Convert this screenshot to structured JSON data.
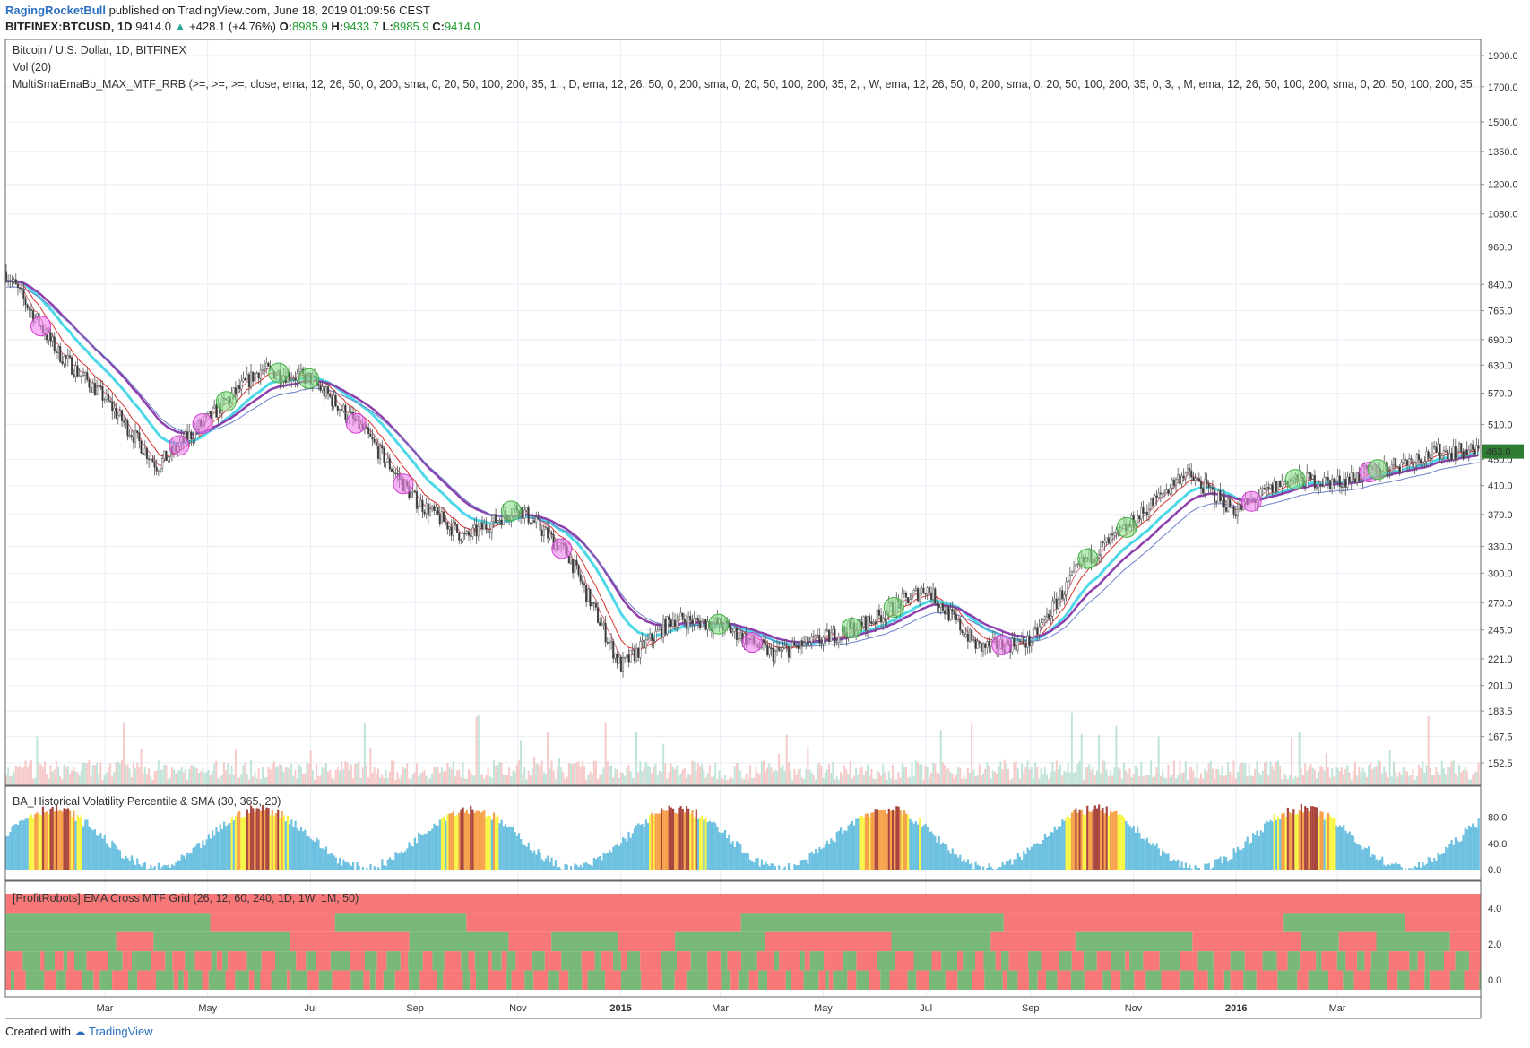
{
  "header": {
    "author": "RagingRocketBull",
    "published": "published on TradingView.com, June 18, 2019 01:09:56 CEST",
    "symbol": "BITFINEX:BTCUSD, 1D",
    "last": "9414.0",
    "change": "+428.1 (+4.76%)",
    "o_label": "O:",
    "o": "8985.9",
    "h_label": "H:",
    "h": "9433.7",
    "l_label": "L:",
    "l": "8985.9",
    "c_label": "C:",
    "c": "9414.0"
  },
  "legends": {
    "main_title": "Bitcoin / U.S. Dollar, 1D, BITFINEX",
    "volume": "Vol (20)",
    "indicator": "MultiSmaEmaBb_MAX_MTF_RRB (>=, >=, >=, close, ema, 12, 26, 50, 0, 200, sma, 0, 20, 50, 100, 200, 35, 1, , D, ema, 12, 26, 50, 0, 200, sma, 0, 20, 50, 100, 200, 35, 2, , W, ema, 12, 26, 50, 0, 200, sma, 0, 20, 50, 100, 200, 35, 0, 3, , M, ema, 12, 26, 50, 100, 200, sma, 0, 20, 50, 100, 200, 35",
    "volatility": "BA_Historical Volatility Percentile & SMA (30, 365, 20)",
    "ema_grid": "[ProfitRobots] EMA Cross MTF Grid (26, 12, 60, 240, 1D, 1W, 1M, 50)"
  },
  "colors": {
    "up": "#26a69a",
    "down": "#ef5350",
    "candle": "#555555",
    "cyan": "#4dd8e8",
    "purple": "#8e3fae",
    "red_ma": "#d9302c",
    "vol_blue": "#6cc0e0",
    "vol_yellow": "#f7f545",
    "vol_red": "#a8453e",
    "vol_orange": "#f7a24a",
    "grid_red": "#f87878",
    "grid_green": "#78b878"
  },
  "footer": {
    "created": "Created with",
    "brand": "TradingView"
  },
  "chart_data": [
    {
      "type": "line",
      "title": "Bitcoin / U.S. Dollar, 1D, BITFINEX",
      "scale": "log",
      "y_ticks": [
        "1900.0",
        "1700.0",
        "1500.0",
        "1350.0",
        "1200.0",
        "1080.0",
        "960.0",
        "840.0",
        "765.0",
        "690.0",
        "630.0",
        "570.0",
        "510.0",
        "450.0",
        "410.0",
        "370.0",
        "330.0",
        "300.0",
        "270.0",
        "245.0",
        "221.0",
        "201.0",
        "183.5",
        "167.5",
        "152.5"
      ],
      "x_ticks": [
        "Mar",
        "May",
        "Jul",
        "Sep",
        "Nov",
        "2015",
        "Mar",
        "May",
        "Jul",
        "Sep",
        "Nov",
        "2016",
        "Mar"
      ],
      "last_price_label": "463.0",
      "series": [
        {
          "values": [
            {
              "x": "2014-01",
              "y": 880
            },
            {
              "x": "2014-02",
              "y": 660
            },
            {
              "x": "2014-03",
              "y": 560
            },
            {
              "x": "2014-04",
              "y": 440
            },
            {
              "x": "2014-05",
              "y": 520
            },
            {
              "x": "2014-06",
              "y": 620
            },
            {
              "x": "2014-07",
              "y": 600
            },
            {
              "x": "2014-08",
              "y": 500
            },
            {
              "x": "2014-09",
              "y": 390
            },
            {
              "x": "2014-10",
              "y": 340
            },
            {
              "x": "2014-11",
              "y": 380
            },
            {
              "x": "2014-12",
              "y": 320
            },
            {
              "x": "2015-01",
              "y": 215
            },
            {
              "x": "2015-02",
              "y": 255
            },
            {
              "x": "2015-03",
              "y": 250
            },
            {
              "x": "2015-04",
              "y": 225
            },
            {
              "x": "2015-05",
              "y": 237
            },
            {
              "x": "2015-06",
              "y": 255
            },
            {
              "x": "2015-07",
              "y": 285
            },
            {
              "x": "2015-08",
              "y": 230
            },
            {
              "x": "2015-09",
              "y": 235
            },
            {
              "x": "2015-10",
              "y": 310
            },
            {
              "x": "2015-11",
              "y": 360
            },
            {
              "x": "2015-12",
              "y": 430
            },
            {
              "x": "2016-01",
              "y": 375
            },
            {
              "x": "2016-02",
              "y": 420
            },
            {
              "x": "2016-03",
              "y": 415
            },
            {
              "x": "2016-04",
              "y": 440
            },
            {
              "x": "2016-05",
              "y": 463
            }
          ]
        }
      ]
    },
    {
      "type": "bar",
      "title": "BA_Historical Volatility Percentile & SMA (30, 365, 20)",
      "y_ticks": [
        "80.0",
        "40.0",
        "0.0"
      ],
      "ylim": [
        0,
        100
      ]
    },
    {
      "type": "heatmap",
      "title": "[ProfitRobots] EMA Cross MTF Grid (26, 12, 60, 240, 1D, 1W, 1M, 50)",
      "y_ticks": [
        "4.0",
        "2.0",
        "0.0"
      ]
    }
  ]
}
